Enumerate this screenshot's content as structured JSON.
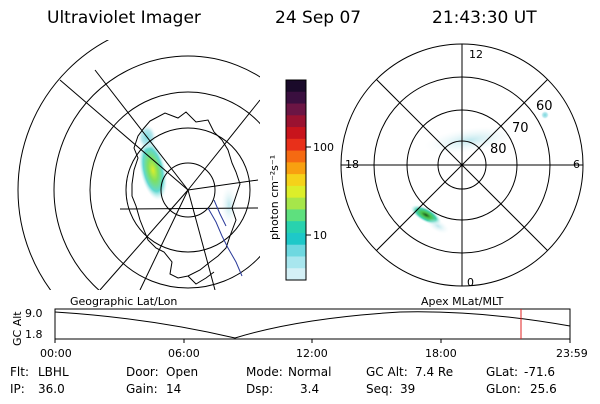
{
  "header": {
    "instrument": "Ultraviolet Imager",
    "date": "24 Sep 07",
    "time": "21:43:30 UT"
  },
  "colorbar": {
    "unit_label": "photon cm⁻²s⁻¹",
    "tick_labels": [
      "100",
      "10"
    ],
    "colors": [
      "#1a0a2a",
      "#3a0f3f",
      "#6b1544",
      "#9a1230",
      "#c8141c",
      "#e8301a",
      "#f56a12",
      "#f8a010",
      "#f5d21a",
      "#dcee2a",
      "#a6e64a",
      "#5ee07e",
      "#28d2ae",
      "#1ec8c8",
      "#6ed8e0",
      "#a8e6ee",
      "#d4f0f6"
    ]
  },
  "left_map": {
    "label": "Geographic Lat/Lon"
  },
  "right_map": {
    "label": "Apex  MLat/MLT",
    "mlt_labels": {
      "top": "12",
      "bottom": "0",
      "left": "18",
      "right": "6"
    },
    "lat_labels": [
      "60",
      "70",
      "80"
    ]
  },
  "altitude_plot": {
    "ylabel": "GC Alt",
    "y_ticks": [
      "9.0",
      "1.8"
    ],
    "x_ticks": [
      "00:00",
      "06:00",
      "12:00",
      "18:00",
      "23:59"
    ],
    "marker_color": "#e02020"
  },
  "info": {
    "filter": {
      "label": "Flt:",
      "value": "LBHL"
    },
    "ip": {
      "label": "IP:",
      "value": "36.0"
    },
    "door": {
      "label": "Door:",
      "value": "Open"
    },
    "gain": {
      "label": "Gain:",
      "value": "14"
    },
    "mode": {
      "label": "Mode:",
      "value": "Normal"
    },
    "dsp": {
      "label": "Dsp:",
      "value": "3.4"
    },
    "gcalt": {
      "label": "GC Alt:",
      "value": "7.4 Re"
    },
    "seq": {
      "label": "Seq:",
      "value": "39"
    },
    "glat": {
      "label": "GLat:",
      "value": "-71.6"
    },
    "glon": {
      "label": "GLon:",
      "value": "25.6"
    }
  }
}
